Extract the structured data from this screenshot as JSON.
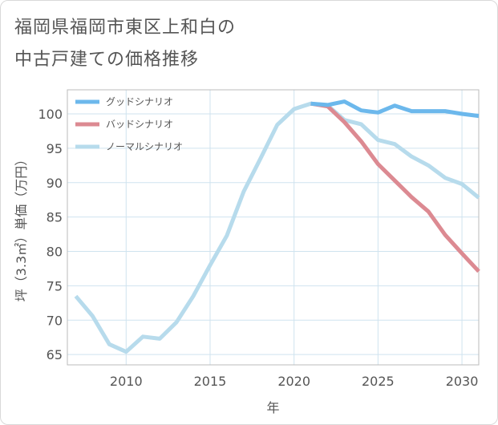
{
  "title_lines": [
    "福岡県福岡市東区上和白の",
    "中古戸建ての価格推移"
  ],
  "chart_data": {
    "type": "line",
    "xlabel": "年",
    "ylabel": "坪（3.3㎡）単価（万円）",
    "xlim": [
      2006.5,
      2031
    ],
    "ylim": [
      63.5,
      103.5
    ],
    "xticks": [
      2010,
      2015,
      2020,
      2025,
      2030
    ],
    "yticks": [
      65,
      70,
      75,
      80,
      85,
      90,
      95,
      100
    ],
    "grid": true,
    "legend_position": "top-left",
    "series": [
      {
        "name": "グッドシナリオ",
        "color": "#6cb8ec",
        "x": [
          2021,
          2022,
          2023,
          2024,
          2025,
          2026,
          2027,
          2028,
          2029,
          2030,
          2031
        ],
        "y": [
          101.5,
          101.3,
          101.8,
          100.5,
          100.2,
          101.2,
          100.4,
          100.4,
          100.4,
          100.0,
          99.7
        ]
      },
      {
        "name": "バッドシナリオ",
        "color": "#dc8a92",
        "x": [
          2021,
          2022,
          2023,
          2024,
          2025,
          2026,
          2027,
          2028,
          2029,
          2030,
          2031
        ],
        "y": [
          101.5,
          101.1,
          98.8,
          96.0,
          92.7,
          90.3,
          87.9,
          85.8,
          82.4,
          79.7,
          77.1
        ]
      },
      {
        "name": "ノーマルシナリオ",
        "color": "#b7dbec",
        "x": [
          2007,
          2008,
          2009,
          2010,
          2011,
          2012,
          2013,
          2014,
          2015,
          2016,
          2017,
          2018,
          2019,
          2020,
          2021,
          2022,
          2023,
          2024,
          2025,
          2026,
          2027,
          2028,
          2029,
          2030,
          2031
        ],
        "y": [
          73.5,
          70.6,
          66.5,
          65.4,
          67.6,
          67.3,
          69.7,
          73.5,
          78.0,
          82.3,
          88.7,
          93.5,
          98.4,
          100.7,
          101.5,
          101.2,
          99.1,
          98.5,
          96.2,
          95.6,
          93.8,
          92.5,
          90.7,
          89.8,
          87.8
        ]
      }
    ]
  }
}
